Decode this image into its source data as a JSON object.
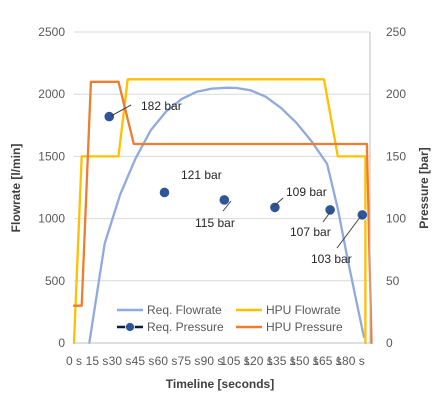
{
  "chart_data": {
    "type": "line",
    "xlabel": "Timeline [seconds]",
    "ylabel_left": "Flowrate [l/min]",
    "ylabel_right": "Pressure [bar]",
    "x_ticks": [
      0,
      15,
      30,
      45,
      60,
      75,
      90,
      105,
      120,
      135,
      150,
      165,
      180
    ],
    "x_tick_labels": [
      "0 s",
      "15 s",
      "30 s",
      "45 s",
      "60 s",
      "75 s",
      "90 s",
      "105 s",
      "120 s",
      "135 s",
      "150 s",
      "165 s",
      "180 s"
    ],
    "xlim": [
      0,
      193
    ],
    "ylim_left": [
      0,
      2500
    ],
    "ylim_right": [
      0,
      250
    ],
    "y_left_ticks": [
      0,
      500,
      1000,
      1500,
      2000,
      2500
    ],
    "y_right_ticks": [
      0,
      50,
      100,
      150,
      200,
      250
    ],
    "grid": "horizontal",
    "legend_position": "bottom",
    "colors": {
      "req_flowrate": "#8faadc",
      "hpu_flowrate": "#ffc000",
      "req_pressure_marker": "#2e5597",
      "req_pressure_line": "#0d1b3e",
      "hpu_pressure": "#ed7d31",
      "grid": "#d9d9d9"
    },
    "series": [
      {
        "name": "Req. Flowrate",
        "axis": "left",
        "style": "line",
        "x": [
          10,
          20,
          30,
          40,
          50,
          60,
          70,
          80,
          90,
          100,
          106,
          115,
          125,
          135,
          145,
          155,
          165,
          172,
          178,
          183,
          189
        ],
        "y": [
          0,
          800,
          1190,
          1480,
          1710,
          1860,
          1960,
          2020,
          2045,
          2052,
          2050,
          2032,
          1980,
          1890,
          1770,
          1620,
          1440,
          1080,
          700,
          400,
          50
        ]
      },
      {
        "name": "HPU Flowrate",
        "axis": "left",
        "style": "line",
        "x": [
          0,
          5,
          29,
          35,
          163,
          172,
          190,
          190
        ],
        "y": [
          0,
          1500,
          1500,
          2120,
          2120,
          1500,
          1500,
          0
        ]
      },
      {
        "name": "Req. Pressure",
        "axis": "right",
        "style": "markers",
        "x": [
          23,
          59,
          98,
          131,
          167,
          188
        ],
        "y": [
          182,
          121,
          115,
          109,
          107,
          103
        ]
      },
      {
        "name": "HPU Pressure",
        "axis": "right",
        "style": "line",
        "x": [
          0,
          5,
          11,
          29,
          39,
          191,
          194
        ],
        "y": [
          30,
          30,
          210,
          210,
          160,
          160,
          0
        ]
      }
    ],
    "annotations": [
      "182 bar",
      "121 bar",
      "115 bar",
      "109 bar",
      "107 bar",
      "103 bar"
    ]
  }
}
